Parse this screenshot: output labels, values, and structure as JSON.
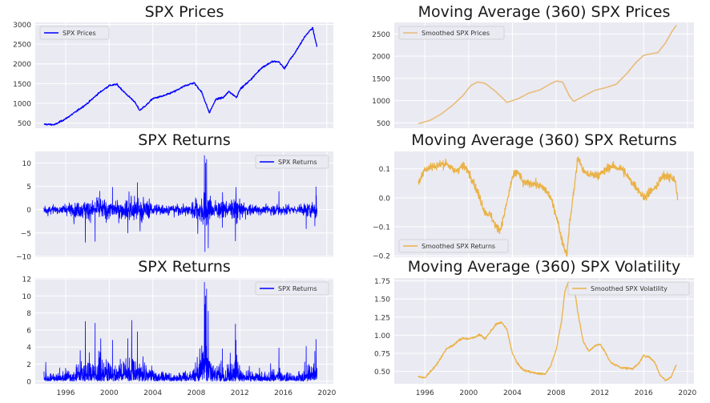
{
  "chart_data": [
    {
      "id": "p1",
      "type": "line",
      "title": "SPX Prices",
      "xlabel": "",
      "ylabel": "",
      "xlim": [
        1993.2,
        2020.6
      ],
      "ylim": [
        370,
        3050
      ],
      "yticks": [
        500,
        1000,
        1500,
        2000,
        2500,
        3000
      ],
      "ytick_labels": [
        "500",
        "1000",
        "1500",
        "2000",
        "2500",
        "3000"
      ],
      "legend": {
        "position": "top-left",
        "entries": [
          "SPX Prices"
        ]
      },
      "grid": true,
      "series": [
        {
          "name": "SPX Prices",
          "color": "#0000ff",
          "noise": 18,
          "x": [
            1994.0,
            1995.0,
            1996.0,
            1997.0,
            1998.0,
            1999.0,
            2000.0,
            2000.7,
            2001.5,
            2002.3,
            2002.8,
            2003.5,
            2004.0,
            2005.0,
            2006.0,
            2007.0,
            2007.8,
            2008.5,
            2009.2,
            2009.8,
            2010.5,
            2011.0,
            2011.7,
            2012.0,
            2013.0,
            2014.0,
            2015.0,
            2015.6,
            2016.1,
            2016.6,
            2017.0,
            2018.0,
            2018.7,
            2018.9,
            2019.1
          ],
          "y": [
            470,
            460,
            610,
            800,
            1000,
            1250,
            1450,
            1480,
            1250,
            1050,
            820,
            980,
            1120,
            1190,
            1300,
            1450,
            1520,
            1280,
            760,
            1100,
            1150,
            1300,
            1150,
            1350,
            1600,
            1900,
            2060,
            2050,
            1880,
            2100,
            2250,
            2700,
            2920,
            2650,
            2430
          ]
        }
      ]
    },
    {
      "id": "p2",
      "type": "line",
      "title": "Moving Average (360) SPX Prices",
      "xlabel": "",
      "ylabel": "",
      "xlim": [
        1993.2,
        2020.6
      ],
      "ylim": [
        380,
        2760
      ],
      "yticks": [
        500,
        1000,
        1500,
        2000,
        2500
      ],
      "ytick_labels": [
        "500",
        "1000",
        "1500",
        "2000",
        "2500"
      ],
      "legend": {
        "position": "top-left",
        "entries": [
          "Smoothed SPX Prices"
        ]
      },
      "grid": true,
      "series": [
        {
          "name": "Smoothed SPX Prices",
          "color": "#e8bc7a",
          "noise": 0,
          "x": [
            1995.4,
            1996.5,
            1997.5,
            1998.5,
            1999.5,
            2000.2,
            2000.8,
            2001.5,
            2002.5,
            2003.5,
            2004.5,
            2005.5,
            2006.5,
            2007.5,
            2008.0,
            2008.6,
            2009.2,
            2009.6,
            2010.5,
            2011.5,
            2012.5,
            2013.5,
            2014.5,
            2015.3,
            2016.0,
            2016.6,
            2017.3,
            2018.0,
            2018.6,
            2019.0
          ],
          "y": [
            480,
            560,
            700,
            890,
            1120,
            1340,
            1420,
            1390,
            1200,
            960,
            1040,
            1170,
            1240,
            1380,
            1440,
            1420,
            1110,
            980,
            1100,
            1230,
            1290,
            1370,
            1620,
            1860,
            2020,
            2050,
            2080,
            2300,
            2560,
            2700
          ]
        }
      ]
    },
    {
      "id": "p3",
      "type": "line",
      "title": "SPX Returns",
      "xlabel": "",
      "ylabel": "",
      "xlim": [
        1993.2,
        2020.6
      ],
      "ylim": [
        -10.2,
        12.5
      ],
      "yticks": [
        -10,
        -5,
        0,
        5,
        10
      ],
      "ytick_labels": [
        "−10",
        "−5",
        "0",
        "5",
        "10"
      ],
      "legend": {
        "position": "top-right",
        "entries": [
          "SPX Returns"
        ]
      },
      "grid": true,
      "series": [
        {
          "name": "SPX Returns",
          "color": "#0000ff",
          "kind": "returns",
          "samples": 1500,
          "vol_x": [
            1994.0,
            1995.0,
            1996.5,
            1997.5,
            1998.5,
            2000.0,
            2001.0,
            2002.5,
            2003.5,
            2004.5,
            2006.0,
            2007.3,
            2008.0,
            2008.7,
            2009.0,
            2009.6,
            2010.4,
            2011.0,
            2011.6,
            2012.5,
            2014.0,
            2015.0,
            2016.0,
            2017.0,
            2018.0,
            2018.9,
            2019.1
          ],
          "vol_y": [
            0.9,
            0.6,
            1.0,
            1.4,
            1.6,
            1.6,
            1.5,
            2.1,
            1.6,
            0.8,
            0.7,
            1.0,
            1.6,
            3.5,
            2.6,
            1.4,
            1.3,
            1.2,
            1.9,
            1.0,
            0.7,
            0.9,
            1.0,
            0.5,
            1.0,
            1.5,
            2.0
          ],
          "spikes": [
            [
              1997.8,
              -7.0
            ],
            [
              1998.7,
              -6.8
            ],
            [
              2000.3,
              4.8
            ],
            [
              2001.7,
              -5.0
            ],
            [
              2002.6,
              5.8
            ],
            [
              2008.75,
              11.6
            ],
            [
              2008.8,
              -9.0
            ],
            [
              2008.95,
              10.8
            ],
            [
              2008.85,
              10.0
            ],
            [
              2009.1,
              -8.2
            ],
            [
              2010.4,
              -3.8
            ],
            [
              2011.6,
              -6.7
            ],
            [
              2011.65,
              4.8
            ],
            [
              2015.6,
              3.9
            ],
            [
              2018.1,
              -4.1
            ],
            [
              2018.9,
              -3.5
            ],
            [
              2019.0,
              4.9
            ]
          ]
        }
      ]
    },
    {
      "id": "p4",
      "type": "line",
      "title": "Moving Average (360) SPX Returns",
      "xlabel": "",
      "ylabel": "",
      "xlim": [
        1993.2,
        2020.6
      ],
      "ylim": [
        -0.205,
        0.16
      ],
      "yticks": [
        -0.2,
        -0.1,
        0.0,
        0.1
      ],
      "ytick_labels": [
        "−0.2",
        "−0.1",
        "0.0",
        "0.1"
      ],
      "legend": {
        "position": "bottom-left",
        "entries": [
          "Smoothed SPX Returns"
        ]
      },
      "grid": true,
      "series": [
        {
          "name": "Smoothed SPX Returns",
          "color": "#eab245",
          "noise": 0.012,
          "x": [
            1995.4,
            1996.0,
            1997.0,
            1998.0,
            1998.7,
            1999.5,
            2000.0,
            2000.5,
            2001.0,
            2001.5,
            2002.0,
            2002.5,
            2002.9,
            2003.3,
            2004.0,
            2004.5,
            2005.0,
            2006.0,
            2007.0,
            2007.5,
            2008.0,
            2008.5,
            2008.8,
            2009.0,
            2009.2,
            2009.7,
            2010.0,
            2010.5,
            2011.0,
            2012.0,
            2013.0,
            2014.0,
            2015.0,
            2015.5,
            2016.0,
            2016.5,
            2017.0,
            2017.5,
            2018.0,
            2018.5,
            2018.9,
            2019.0,
            2019.1
          ],
          "y": [
            0.05,
            0.1,
            0.11,
            0.12,
            0.09,
            0.11,
            0.09,
            0.05,
            0.0,
            -0.05,
            -0.06,
            -0.1,
            -0.11,
            -0.05,
            0.07,
            0.09,
            0.05,
            0.05,
            0.03,
            0.0,
            -0.06,
            -0.14,
            -0.18,
            -0.19,
            -0.1,
            0.05,
            0.14,
            0.09,
            0.08,
            0.08,
            0.11,
            0.1,
            0.05,
            0.03,
            0.0,
            0.02,
            0.03,
            0.06,
            0.08,
            0.07,
            0.06,
            0.02,
            0.0
          ]
        }
      ]
    },
    {
      "id": "p5",
      "type": "line",
      "title": "SPX Returns",
      "xlabel": "",
      "ylabel": "",
      "xlim": [
        1993.2,
        2020.6
      ],
      "ylim": [
        -0.3,
        12.1
      ],
      "yticks": [
        0,
        2,
        4,
        6,
        8,
        10,
        12
      ],
      "ytick_labels": [
        "0",
        "2",
        "4",
        "6",
        "8",
        "10",
        "12"
      ],
      "xticks": [
        1996,
        2000,
        2004,
        2008,
        2012,
        2016,
        2020
      ],
      "xtick_labels": [
        "1996",
        "2000",
        "2004",
        "2008",
        "2012",
        "2016",
        "2020"
      ],
      "legend": {
        "position": "top-right",
        "entries": [
          "SPX Returns"
        ]
      },
      "grid": true,
      "series": [
        {
          "name": "SPX Returns",
          "color": "#0000ff",
          "kind": "absreturns",
          "samples": 1500,
          "vol_x": [
            1994.0,
            1995.0,
            1996.5,
            1997.5,
            1998.5,
            2000.0,
            2001.0,
            2002.5,
            2003.5,
            2004.5,
            2006.0,
            2007.3,
            2008.0,
            2008.7,
            2009.0,
            2009.6,
            2010.4,
            2011.0,
            2011.6,
            2012.5,
            2014.0,
            2015.0,
            2016.0,
            2017.0,
            2018.0,
            2018.9,
            2019.1
          ],
          "vol_y": [
            0.9,
            0.6,
            1.0,
            1.4,
            1.6,
            1.6,
            1.5,
            2.1,
            1.6,
            0.8,
            0.7,
            1.0,
            1.6,
            3.5,
            2.6,
            1.4,
            1.3,
            1.2,
            1.9,
            1.0,
            0.7,
            0.9,
            1.0,
            0.5,
            1.0,
            1.5,
            2.0
          ],
          "spikes": [
            [
              1997.8,
              7.0
            ],
            [
              1998.7,
              6.8
            ],
            [
              2000.3,
              4.8
            ],
            [
              2001.7,
              5.0
            ],
            [
              2002.6,
              5.8
            ],
            [
              2008.75,
              11.6
            ],
            [
              2008.8,
              9.0
            ],
            [
              2008.95,
              10.8
            ],
            [
              2008.85,
              10.0
            ],
            [
              2009.1,
              8.2
            ],
            [
              2010.4,
              3.8
            ],
            [
              2011.6,
              6.7
            ],
            [
              2011.65,
              4.8
            ],
            [
              2015.6,
              3.9
            ],
            [
              2018.1,
              4.1
            ],
            [
              2018.9,
              3.5
            ],
            [
              2019.0,
              4.9
            ]
          ]
        }
      ]
    },
    {
      "id": "p6",
      "type": "line",
      "title": "Moving Average (360) SPX Volatility",
      "xlabel": "",
      "ylabel": "",
      "xlim": [
        1993.2,
        2020.6
      ],
      "ylim": [
        0.33,
        1.79
      ],
      "yticks": [
        0.5,
        0.75,
        1.0,
        1.25,
        1.5,
        1.75
      ],
      "ytick_labels": [
        "0.50",
        "0.75",
        "1.00",
        "1.25",
        "1.50",
        "1.75"
      ],
      "xticks": [
        1996,
        2000,
        2004,
        2008,
        2012,
        2016,
        2020
      ],
      "xtick_labels": [
        "1996",
        "2000",
        "2004",
        "2008",
        "2012",
        "2016",
        "2020"
      ],
      "legend": {
        "position": "top-right",
        "entries": [
          "Smoothed SPX Volatility"
        ]
      },
      "grid": true,
      "series": [
        {
          "name": "Smoothed SPX Volatility",
          "color": "#eab245",
          "noise": 0.012,
          "x": [
            1995.4,
            1996.0,
            1996.5,
            1997.0,
            1997.5,
            1998.0,
            1998.5,
            1999.0,
            1999.5,
            2000.0,
            2000.5,
            2001.0,
            2001.5,
            2002.0,
            2002.5,
            2003.0,
            2003.5,
            2004.0,
            2004.5,
            2005.0,
            2006.0,
            2007.0,
            2007.5,
            2008.0,
            2008.5,
            2008.8,
            2009.1,
            2009.4,
            2009.7,
            2010.0,
            2010.5,
            2011.0,
            2011.5,
            2012.0,
            2012.5,
            2013.0,
            2014.0,
            2015.0,
            2015.5,
            2016.0,
            2016.5,
            2017.0,
            2017.5,
            2018.0,
            2018.5,
            2019.0
          ],
          "y": [
            0.43,
            0.41,
            0.5,
            0.58,
            0.7,
            0.82,
            0.85,
            0.92,
            0.96,
            0.95,
            0.97,
            1.01,
            0.95,
            1.05,
            1.15,
            1.18,
            1.08,
            0.75,
            0.6,
            0.52,
            0.48,
            0.46,
            0.58,
            0.8,
            1.2,
            1.6,
            1.73,
            1.7,
            1.62,
            1.3,
            0.9,
            0.78,
            0.85,
            0.88,
            0.76,
            0.62,
            0.55,
            0.54,
            0.6,
            0.72,
            0.7,
            0.63,
            0.45,
            0.38,
            0.42,
            0.6
          ]
        }
      ]
    }
  ]
}
